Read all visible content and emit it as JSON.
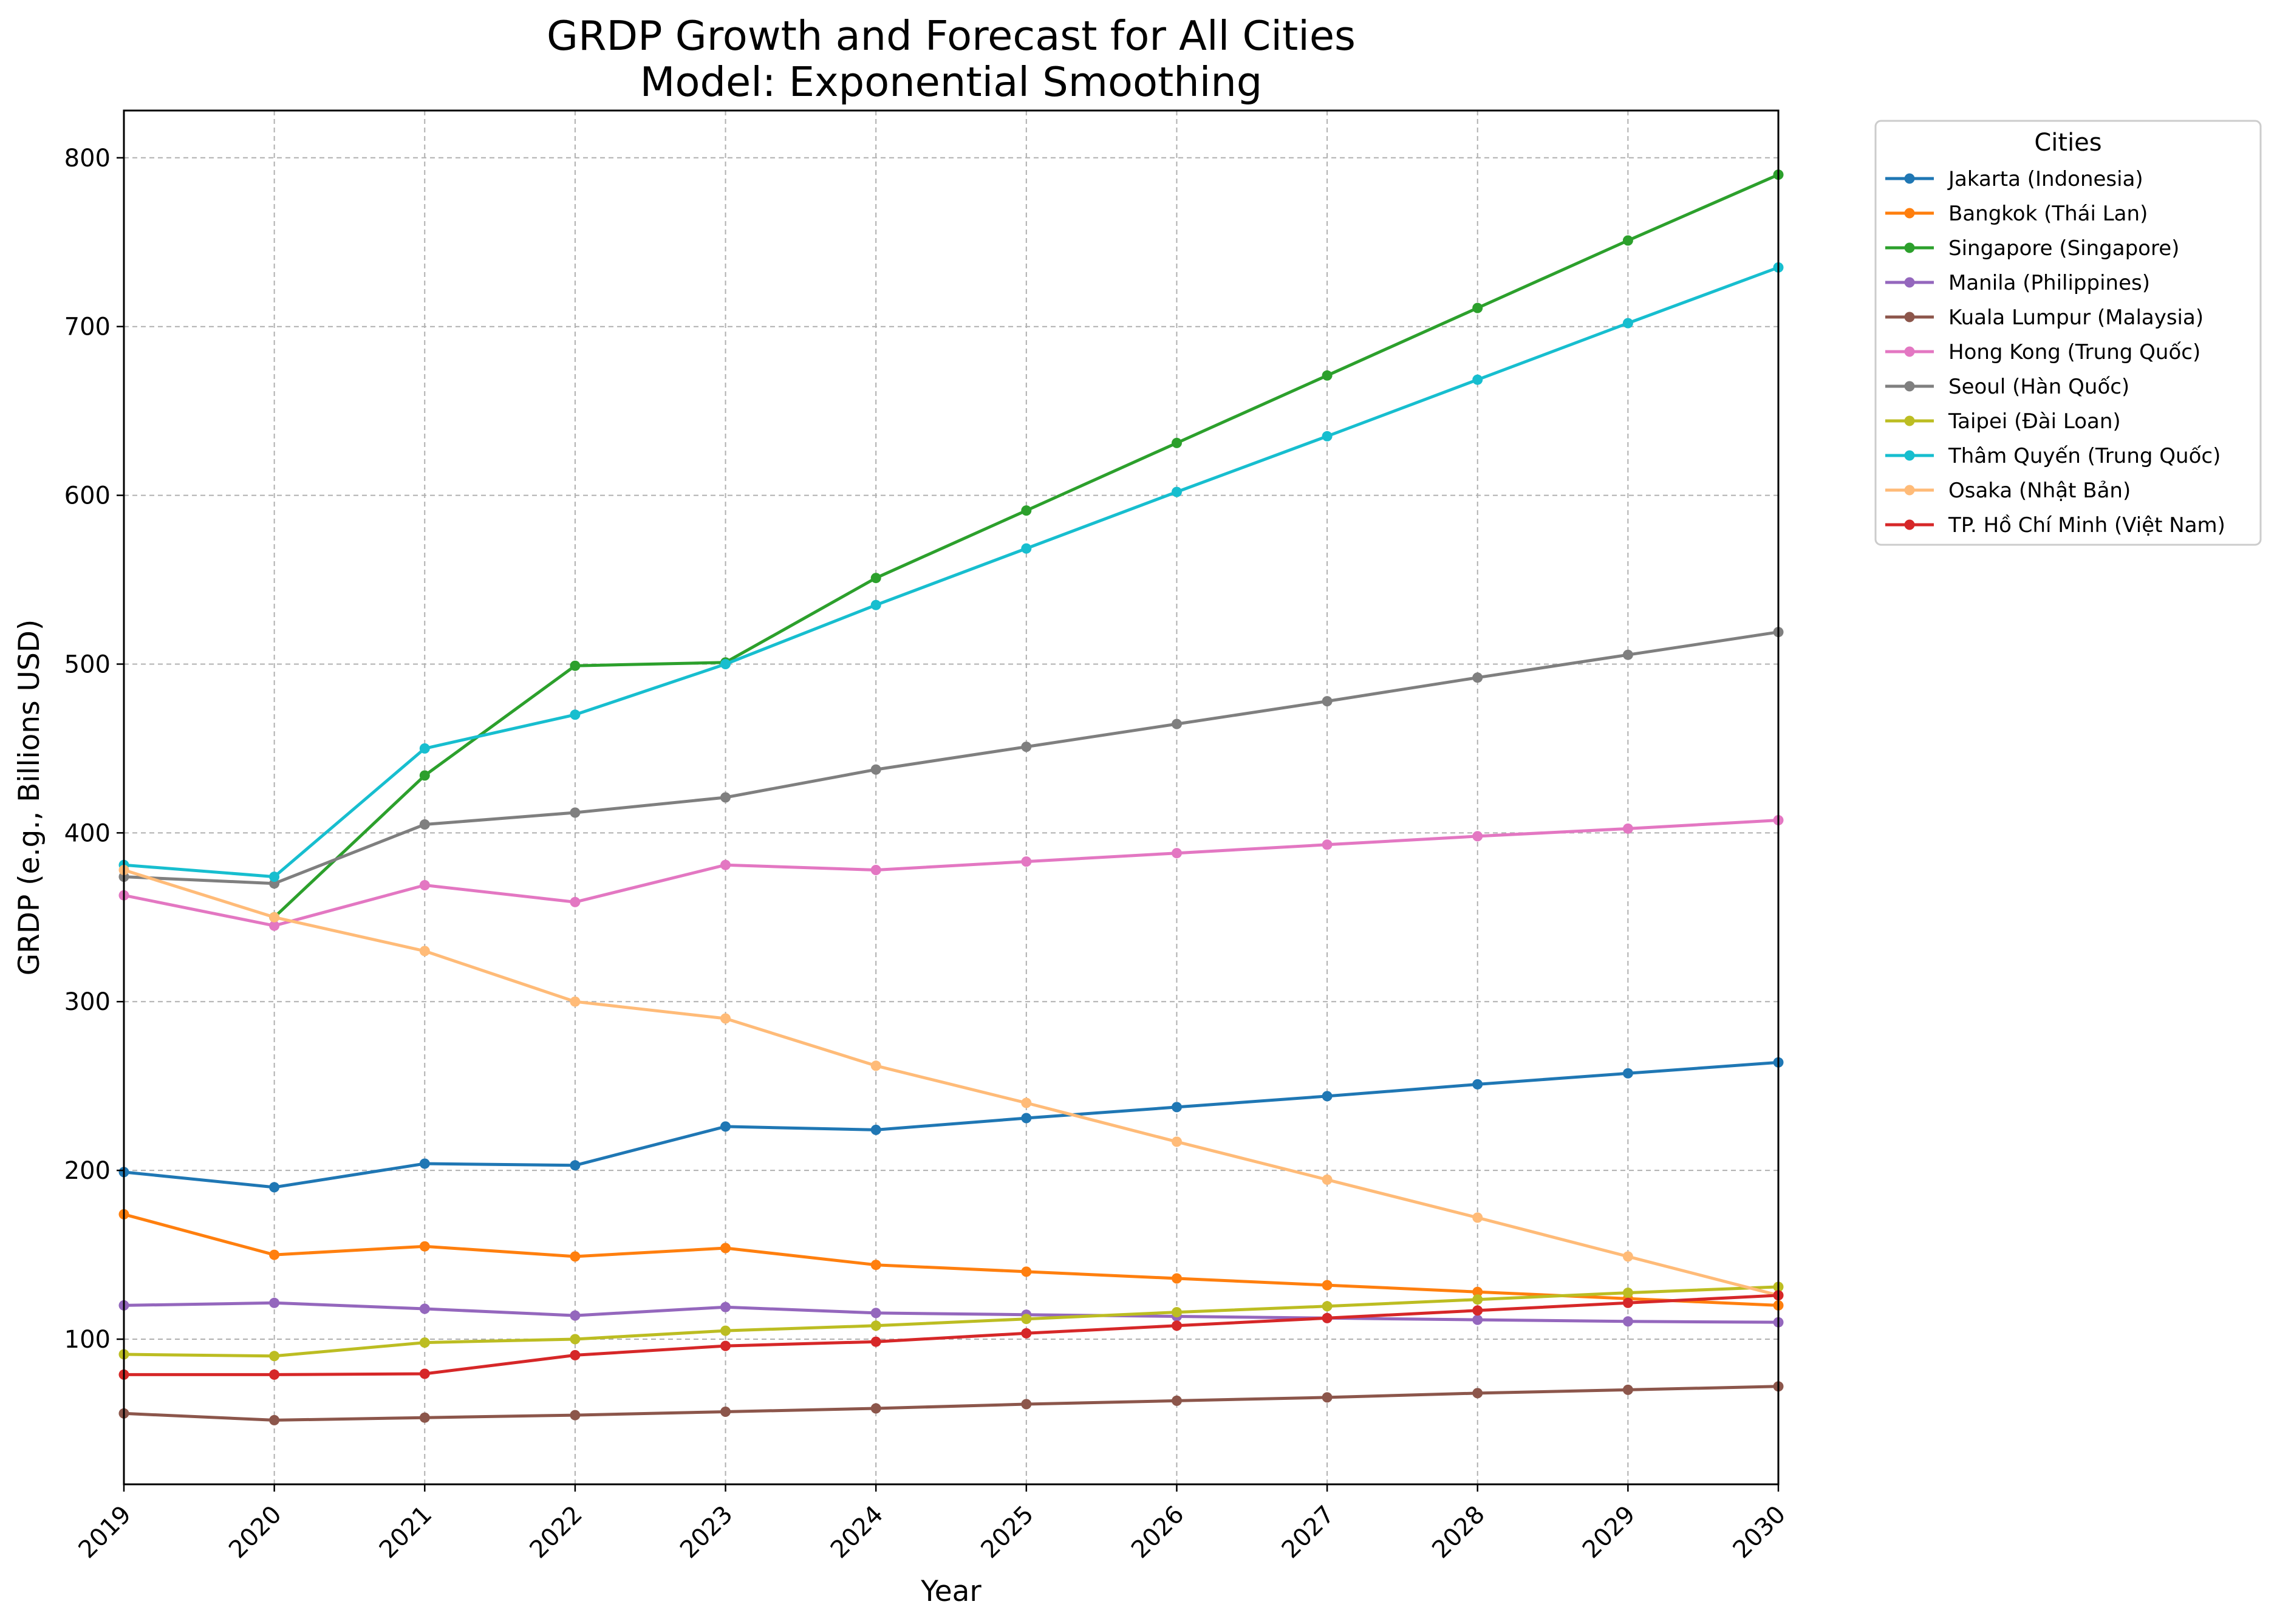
{
  "chart_data": {
    "type": "line",
    "title": "GRDP Growth and Forecast for All Cities",
    "subtitle": "Model: Exponential Smoothing",
    "xlabel": "Year",
    "ylabel": "GRDP (e.g., Billions USD)",
    "x": [
      "2019",
      "2020",
      "2021",
      "2022",
      "2023",
      "2024",
      "2025",
      "2026",
      "2027",
      "2028",
      "2029",
      "2030"
    ],
    "xlim": [
      2019,
      2030
    ],
    "ylim": [
      14,
      828
    ],
    "yticks": [
      "100",
      "200",
      "300",
      "400",
      "500",
      "600",
      "700",
      "800"
    ],
    "grid": true,
    "legend_title": "Cities",
    "legend_position": "outside-right-top",
    "series": [
      {
        "name": "Jakarta (Indonesia)",
        "color": "#1f77b4",
        "values": [
          199,
          190,
          204,
          203,
          226,
          224,
          231,
          237.5,
          244,
          251,
          257.5,
          264
        ]
      },
      {
        "name": "Bangkok (Thái Lan)",
        "color": "#ff7f0e",
        "values": [
          174,
          150,
          155,
          149,
          154,
          144,
          140,
          136,
          132,
          128,
          124,
          120
        ]
      },
      {
        "name": "Singapore (Singapore)",
        "color": "#2ca02c",
        "values": [
          null,
          350,
          434,
          499,
          501,
          551,
          591,
          631,
          671,
          711,
          751,
          790
        ]
      },
      {
        "name": "Manila (Philippines)",
        "color": "#9467bd",
        "values": [
          120,
          121.5,
          118,
          114,
          119,
          115.5,
          114.5,
          113.5,
          112.5,
          111.5,
          110.5,
          110
        ]
      },
      {
        "name": "Kuala Lumpur (Malaysia)",
        "color": "#8c564b",
        "values": [
          56,
          52,
          53.5,
          55,
          57,
          59,
          61.5,
          63.5,
          65.5,
          68,
          70,
          72
        ]
      },
      {
        "name": "Hong Kong (Trung Quốc)",
        "color": "#e377c2",
        "values": [
          363,
          345,
          369,
          359,
          381,
          378,
          383,
          388,
          393,
          398,
          402.5,
          407.5
        ]
      },
      {
        "name": "Seoul (Hàn Quốc)",
        "color": "#7f7f7f",
        "values": [
          374,
          370,
          405,
          412,
          421,
          437.5,
          451,
          464.5,
          478,
          492,
          505.5,
          519
        ]
      },
      {
        "name": "Taipei (Đài Loan)",
        "color": "#bcbd22",
        "values": [
          91,
          90,
          98,
          100,
          105,
          108,
          112,
          116,
          119.5,
          123.5,
          127.5,
          131
        ]
      },
      {
        "name": "Thâm Quyến (Trung Quốc)",
        "color": "#17becf",
        "values": [
          381,
          374,
          450,
          470,
          500,
          535,
          568.5,
          602,
          635,
          668.5,
          702,
          735
        ]
      },
      {
        "name": "Osaka (Nhật Bản)",
        "color": "#ffbb78",
        "values": [
          378,
          350,
          330,
          300,
          290,
          262,
          240,
          217,
          194.5,
          172,
          149,
          126
        ]
      },
      {
        "name": "TP. Hồ Chí Minh (Việt Nam)",
        "color": "#d62728",
        "values": [
          79,
          79,
          79.5,
          90.5,
          96,
          98.5,
          103.5,
          108,
          112.5,
          117,
          121.5,
          126
        ]
      }
    ]
  }
}
